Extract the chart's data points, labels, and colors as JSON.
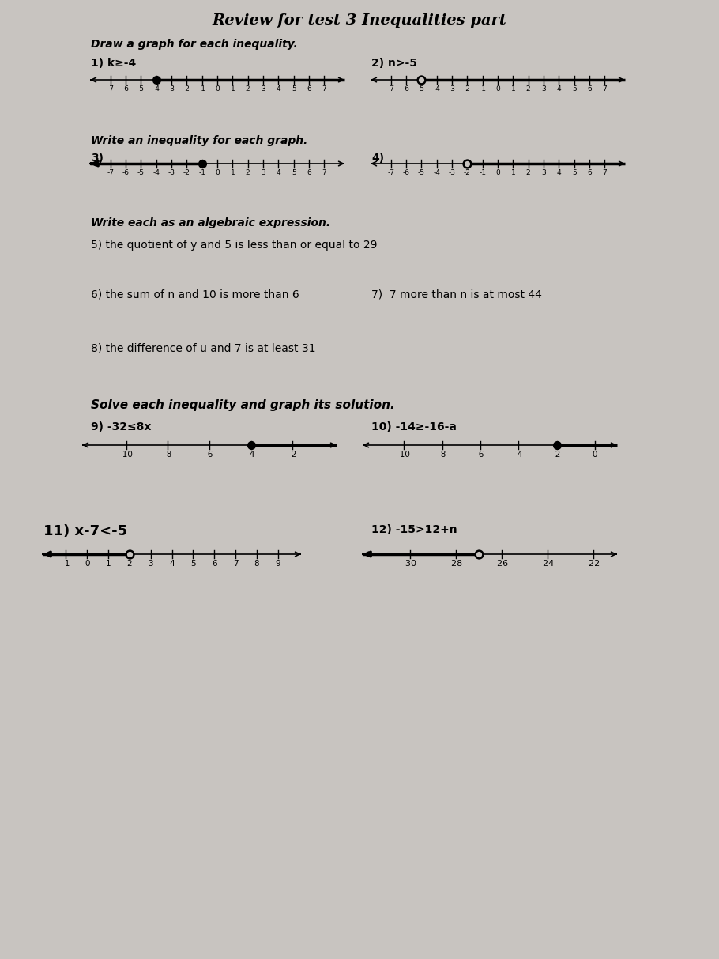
{
  "title": "Review for test 3 Inequalities part",
  "bg_color": "#c8c4c0",
  "text_color": "#111111",
  "section1_title": "Draw a graph for each inequality.",
  "section2_title": "Write an inequality for each graph.",
  "section3_title": "Write each as an algebraic expression.",
  "section4_title": "Solve each inequality and graph its solution.",
  "p1_label": "1) k≥-4",
  "p2_label": "2) n>-5",
  "p3_label": "3)",
  "p4_label": "4)",
  "p5_label": "5) the quotient of y and 5 is less than or equal to 29",
  "p6_label": "6) the sum of n and 10 is more than 6",
  "p7_label": "7)  7 more than n is at most 44",
  "p8_label": "8) the difference of u and 7 is at least 31",
  "p9_label": "9) -32≤8x",
  "p10_label": "10) -14≥-16-a",
  "p11_label": "11) x-7<-5",
  "p12_label": "12) -15>12+n",
  "nl1": {
    "xmin": -7.5,
    "xmax": 7.5,
    "ticks": [
      -7,
      -6,
      -5,
      -4,
      -3,
      -2,
      -1,
      0,
      1,
      2,
      3,
      4,
      5,
      6,
      7
    ],
    "point": -4,
    "filled": true,
    "direction": "right"
  },
  "nl2": {
    "xmin": -7.5,
    "xmax": 7.5,
    "ticks": [
      -7,
      -6,
      -5,
      -4,
      -3,
      -2,
      -1,
      0,
      1,
      2,
      3,
      4,
      5,
      6,
      7
    ],
    "point": -5,
    "filled": false,
    "direction": "right"
  },
  "nl3": {
    "xmin": -7.5,
    "xmax": 7.5,
    "ticks": [
      -7,
      -6,
      -5,
      -4,
      -3,
      -2,
      -1,
      0,
      1,
      2,
      3,
      4,
      5,
      6,
      7
    ],
    "point": -1,
    "filled": true,
    "direction": "left"
  },
  "nl4": {
    "xmin": -7.5,
    "xmax": 7.5,
    "ticks": [
      -7,
      -6,
      -5,
      -4,
      -3,
      -2,
      -1,
      0,
      1,
      2,
      3,
      4,
      5,
      6,
      7
    ],
    "point": -2,
    "filled": false,
    "direction": "right"
  },
  "nl9": {
    "xmin": -11.5,
    "xmax": -0.5,
    "ticks": [
      -10,
      -8,
      -6,
      -4,
      -2
    ],
    "point": -4,
    "filled": true,
    "direction": "right"
  },
  "nl10": {
    "xmin": -11.5,
    "xmax": 0.5,
    "ticks": [
      -10,
      -8,
      -6,
      -4,
      -2,
      0
    ],
    "point": -2,
    "filled": true,
    "direction": "right"
  },
  "nl11": {
    "xmin": -1.5,
    "xmax": 9.5,
    "ticks": [
      -1,
      0,
      1,
      2,
      3,
      4,
      5,
      6,
      7,
      8,
      9
    ],
    "point": 2,
    "filled": false,
    "direction": "left"
  },
  "nl12": {
    "xmin": -31.5,
    "xmax": -21.5,
    "ticks": [
      -30,
      -28,
      -26,
      -24,
      -22
    ],
    "point": -27,
    "filled": false,
    "direction": "left"
  }
}
